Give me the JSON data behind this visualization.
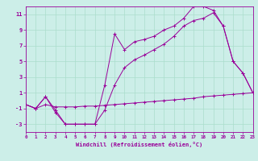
{
  "xlabel": "Windchill (Refroidissement éolien,°C)",
  "bg_color": "#cceee8",
  "grid_color": "#aaddcc",
  "line_color": "#990099",
  "line1_x": [
    0,
    1,
    2,
    3,
    4,
    5,
    6,
    7,
    8,
    9,
    10,
    11,
    12,
    13,
    14,
    15,
    16,
    17,
    18,
    19,
    20,
    21,
    22,
    23
  ],
  "line1_y": [
    -0.5,
    -1.0,
    0.5,
    -1.2,
    -3.0,
    -3.0,
    -3.0,
    -3.0,
    2.0,
    8.5,
    6.5,
    7.5,
    7.8,
    8.2,
    9.0,
    9.5,
    10.5,
    12.0,
    12.0,
    11.5,
    9.5,
    5.0,
    3.5,
    1.0
  ],
  "line2_x": [
    0,
    1,
    2,
    3,
    4,
    5,
    6,
    7,
    8,
    9,
    10,
    11,
    12,
    13,
    14,
    15,
    16,
    17,
    18,
    19,
    20,
    21,
    22,
    23
  ],
  "line2_y": [
    -0.5,
    -1.0,
    0.5,
    -1.5,
    -3.0,
    -3.0,
    -3.0,
    -3.0,
    -1.2,
    2.0,
    4.2,
    5.2,
    5.8,
    6.5,
    7.2,
    8.2,
    9.5,
    10.2,
    10.5,
    11.2,
    9.5,
    5.0,
    3.5,
    1.0
  ],
  "line3_x": [
    0,
    1,
    2,
    3,
    4,
    5,
    6,
    7,
    8,
    9,
    10,
    11,
    12,
    13,
    14,
    15,
    16,
    17,
    18,
    19,
    20,
    21,
    22,
    23
  ],
  "line3_y": [
    -0.5,
    -1.0,
    -0.5,
    -0.8,
    -0.8,
    -0.8,
    -0.7,
    -0.7,
    -0.6,
    -0.5,
    -0.4,
    -0.3,
    -0.2,
    -0.1,
    0.0,
    0.1,
    0.2,
    0.3,
    0.5,
    0.6,
    0.7,
    0.8,
    0.9,
    1.0
  ],
  "xlim": [
    0,
    23
  ],
  "ylim": [
    -4,
    12
  ],
  "yticks": [
    -3,
    -1,
    1,
    3,
    5,
    7,
    9,
    11
  ],
  "xticks": [
    0,
    1,
    2,
    3,
    4,
    5,
    6,
    7,
    8,
    9,
    10,
    11,
    12,
    13,
    14,
    15,
    16,
    17,
    18,
    19,
    20,
    21,
    22,
    23
  ],
  "xtick_labels": [
    "0",
    "1",
    "2",
    "3",
    "4",
    "5",
    "6",
    "7",
    "8",
    "9",
    "10",
    "11",
    "12",
    "13",
    "14",
    "15",
    "16",
    "17",
    "18",
    "19",
    "20",
    "21",
    "22",
    "23"
  ]
}
